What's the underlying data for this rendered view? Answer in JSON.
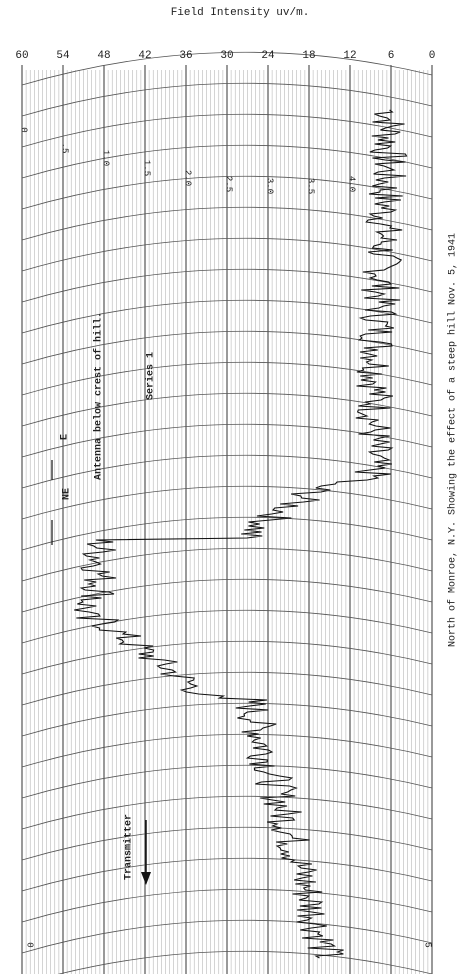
{
  "header": {
    "title": "Field Intensity uv/m."
  },
  "scale": {
    "top_labels": [
      "60",
      "54",
      "48",
      "42",
      "36",
      "30",
      "24",
      "18",
      "12",
      "6",
      "0"
    ],
    "mile_labels": [
      "0",
      ".5",
      "1.0",
      "1.5",
      "2.0",
      "2.5",
      "3.0",
      "3.5",
      "4.0"
    ],
    "bottom_labels": [
      "0",
      "5"
    ]
  },
  "annotations": {
    "caption": "North of Monroe, N.Y.  Showing the effect of a steep hill  Nov. 5, 1941",
    "antenna": "Antenna below crest of hill.",
    "series": "Series 1",
    "direction_ne": "NE",
    "direction_e": "E",
    "transmitter": "Transmitter"
  }
}
